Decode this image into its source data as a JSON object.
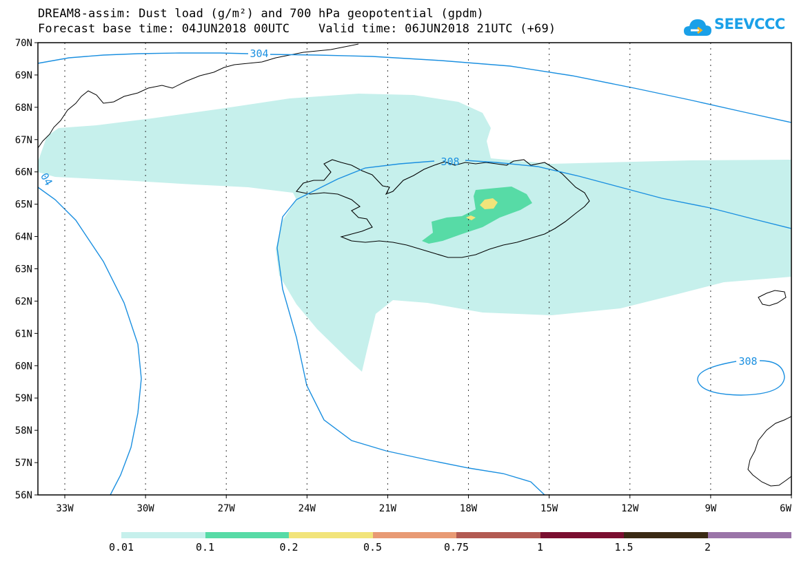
{
  "header": {
    "title_line1": "DREAM8-assim: Dust load (g/m²) and 700 hPa geopotential (gpdm)",
    "title_line2": "Forecast base time: 04JUN2018 00UTC    Valid time: 06JUN2018 21UTC (+69)"
  },
  "logo": {
    "text": "SEEVCCC",
    "icon": "cloud-icon",
    "color": "#1aa0e8"
  },
  "map": {
    "lat_labels": [
      "70N",
      "69N",
      "68N",
      "67N",
      "66N",
      "65N",
      "64N",
      "63N",
      "62N",
      "61N",
      "60N",
      "59N",
      "58N",
      "57N",
      "56N"
    ],
    "lon_labels": [
      "33W",
      "30W",
      "27W",
      "24W",
      "21W",
      "18W",
      "15W",
      "12W",
      "9W",
      "6W"
    ],
    "contour_labels": [
      {
        "text": "304"
      },
      {
        "text": "308"
      },
      {
        "text": "04"
      },
      {
        "text": "308"
      }
    ],
    "colors": {
      "contour": "#1a8fe0",
      "coast": "#000000"
    }
  },
  "legend": {
    "colors": [
      "#c6f0ec",
      "#57dba6",
      "#f2e47a",
      "#e89a74",
      "#b25a52",
      "#7a0f30",
      "#3a2a14",
      "#9a74a8"
    ],
    "labels": [
      "0.01",
      "0.1",
      "0.2",
      "0.5",
      "0.75",
      "1",
      "1.5",
      "2"
    ]
  }
}
